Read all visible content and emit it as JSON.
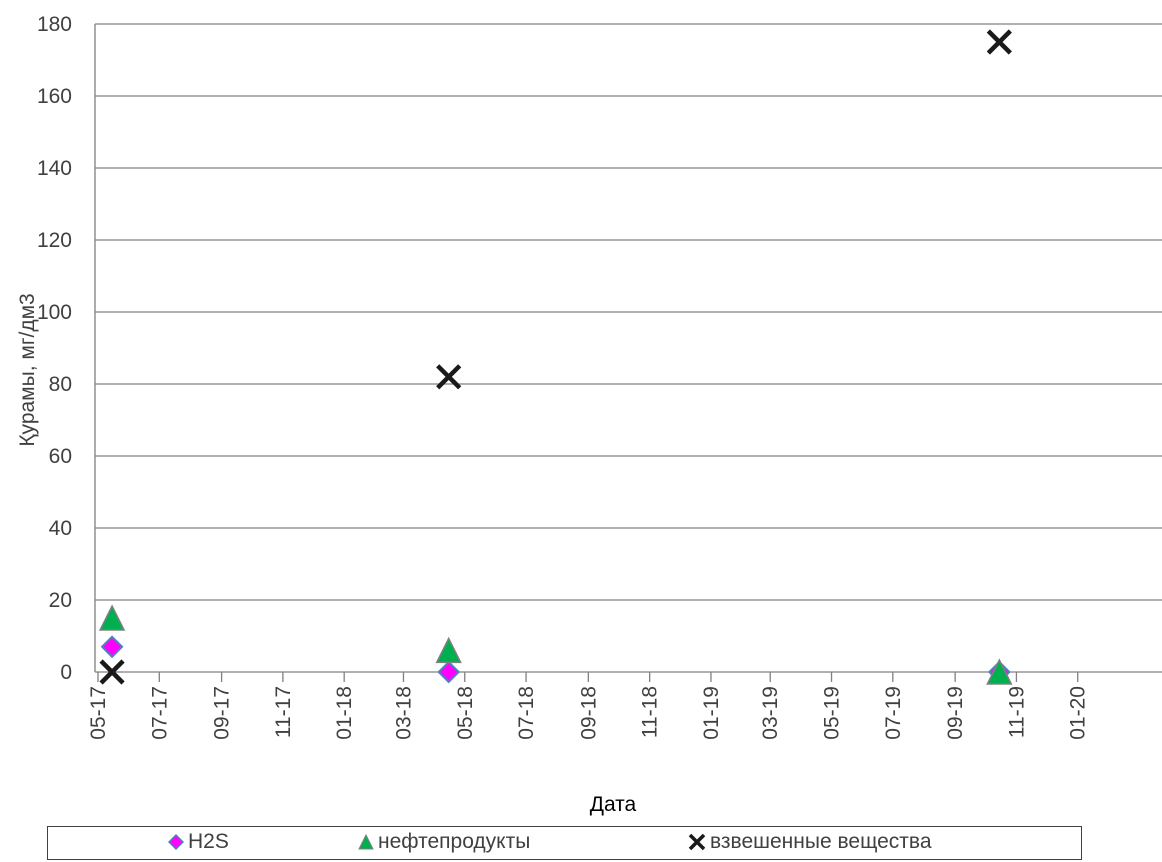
{
  "chart_data": {
    "type": "scatter",
    "title": "",
    "xlabel": "Дата",
    "ylabel": "Қурамы, мг/дм3",
    "ylim": [
      0,
      180
    ],
    "yticks": [
      0,
      20,
      40,
      60,
      80,
      100,
      120,
      140,
      160,
      180
    ],
    "xlim": [
      "2017-05-01",
      "2020-03-01"
    ],
    "xticks": [
      "05-17",
      "07-17",
      "09-17",
      "11-17",
      "01-18",
      "03-18",
      "05-18",
      "07-18",
      "09-18",
      "11-18",
      "01-19",
      "03-19",
      "05-19",
      "07-19",
      "09-19",
      "11-19",
      "01-20"
    ],
    "grid": true,
    "legend_position": "bottom",
    "series": [
      {
        "name": "H2S",
        "marker": "diamond",
        "color": "#ff00ff",
        "edge": "#4f81bd",
        "points": [
          {
            "x": "2017-05-15",
            "y": 7
          },
          {
            "x": "2018-04-15",
            "y": 0
          },
          {
            "x": "2019-10-15",
            "y": 0
          }
        ]
      },
      {
        "name": "нефтепродукты",
        "marker": "triangle",
        "color": "#00b050",
        "edge": "#808080",
        "points": [
          {
            "x": "2017-05-15",
            "y": 15
          },
          {
            "x": "2018-04-15",
            "y": 6
          },
          {
            "x": "2019-10-15",
            "y": 0
          }
        ]
      },
      {
        "name": "взвешенные вещества",
        "marker": "x",
        "color": "#1a1a1a",
        "edge": "#1a1a1a",
        "points": [
          {
            "x": "2017-05-15",
            "y": 0
          },
          {
            "x": "2018-04-15",
            "y": 82
          },
          {
            "x": "2019-10-15",
            "y": 175
          }
        ]
      }
    ]
  }
}
